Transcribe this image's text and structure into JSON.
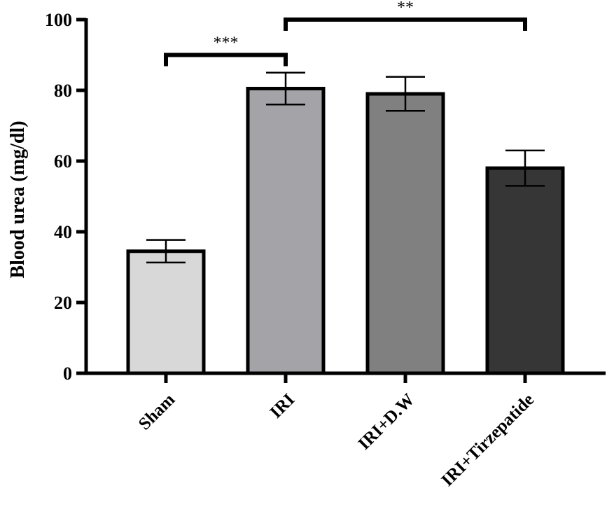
{
  "chart_data": {
    "type": "bar",
    "title": "",
    "xlabel": "",
    "ylabel": "Blood urea (mg/dl)",
    "ylim": [
      0,
      100
    ],
    "yticks": [
      0,
      20,
      40,
      60,
      80,
      100
    ],
    "grid": false,
    "categories": [
      "Sham",
      "IRI",
      "IRI+D.W",
      "IRI+Tirzepatide"
    ],
    "values": [
      34.5,
      80.5,
      79.0,
      58.0
    ],
    "error": [
      3.2,
      4.5,
      4.8,
      5.0
    ],
    "colors": [
      "#d8d8d8",
      "#a3a3a8",
      "#808080",
      "#363636"
    ],
    "significance": [
      {
        "from": 0,
        "to": 1,
        "label": "***",
        "y": 90
      },
      {
        "from": 1,
        "to": 3,
        "label": "**",
        "y": 100
      }
    ]
  }
}
